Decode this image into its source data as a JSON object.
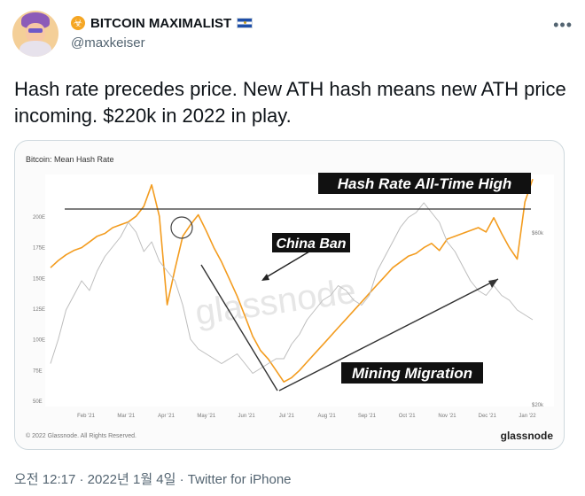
{
  "author": {
    "display_name": "BITCOIN MAXIMALIST",
    "handle": "@maxkeiser",
    "badge_icon": "biohazard-icon",
    "flag_icon": "el-salvador-flag-icon"
  },
  "tweet": {
    "text": "Hash rate precedes price. New ATH hash means new ATH price incoming. $220k in 2022 in play."
  },
  "media": {
    "title": "Bitcoin: Mean Hash Rate",
    "copyright": "© 2022 Glassnode. All Rights Reserved.",
    "logo": "glassnode",
    "watermark": "glassnode",
    "annotations": {
      "ath": "Hash Rate All-Time High",
      "china": "China Ban",
      "migration": "Mining Migration"
    }
  },
  "chart_data": {
    "type": "line",
    "title": "Bitcoin: Mean Hash Rate",
    "x_ticks": [
      "Feb '21",
      "Mar '21",
      "Apr '21",
      "May '21",
      "Jun '21",
      "Jul '21",
      "Aug '21",
      "Sep '21",
      "Oct '21",
      "Nov '21",
      "Dec '21",
      "Jan '22"
    ],
    "y_left_ticks": [
      "200E",
      "175E",
      "150E",
      "125E",
      "100E",
      "75E",
      "50E"
    ],
    "y_right_ticks": [
      "$60k",
      "$20k"
    ],
    "series": [
      {
        "name": "Hash Rate",
        "color": "#f39c1f",
        "values": [
          146,
          151,
          155,
          158,
          160,
          164,
          168,
          170,
          174,
          176,
          178,
          182,
          189,
          204,
          182,
          120,
          145,
          168,
          176,
          183,
          172,
          160,
          150,
          138,
          126,
          112,
          98,
          88,
          82,
          74,
          66,
          69,
          74,
          80,
          86,
          92,
          98,
          104,
          110,
          116,
          122,
          128,
          134,
          140,
          146,
          150,
          154,
          156,
          160,
          163,
          158,
          166,
          168,
          170,
          172,
          174,
          171,
          181,
          170,
          160,
          152,
          192,
          208
        ]
      },
      {
        "name": "Price",
        "color": "#bdbdbd",
        "values": [
          33,
          38,
          44,
          47,
          50,
          48,
          52,
          55,
          57,
          59,
          62,
          60,
          56,
          58,
          54,
          52,
          50,
          45,
          38,
          36,
          35,
          34,
          33,
          34,
          35,
          33,
          31,
          32,
          33,
          34,
          34,
          37,
          39,
          42,
          44,
          46,
          47,
          49,
          48,
          46,
          45,
          47,
          52,
          55,
          58,
          61,
          63,
          64,
          66,
          64,
          62,
          58,
          56,
          53,
          50,
          48,
          47,
          49,
          47,
          46,
          44,
          43,
          42
        ]
      }
    ],
    "ylim": [
      50,
      210
    ],
    "grid": false
  },
  "footer": {
    "time": "오전 12:17",
    "date": "2022년 1월 4일",
    "source": "Twitter for iPhone",
    "separator": "·"
  }
}
